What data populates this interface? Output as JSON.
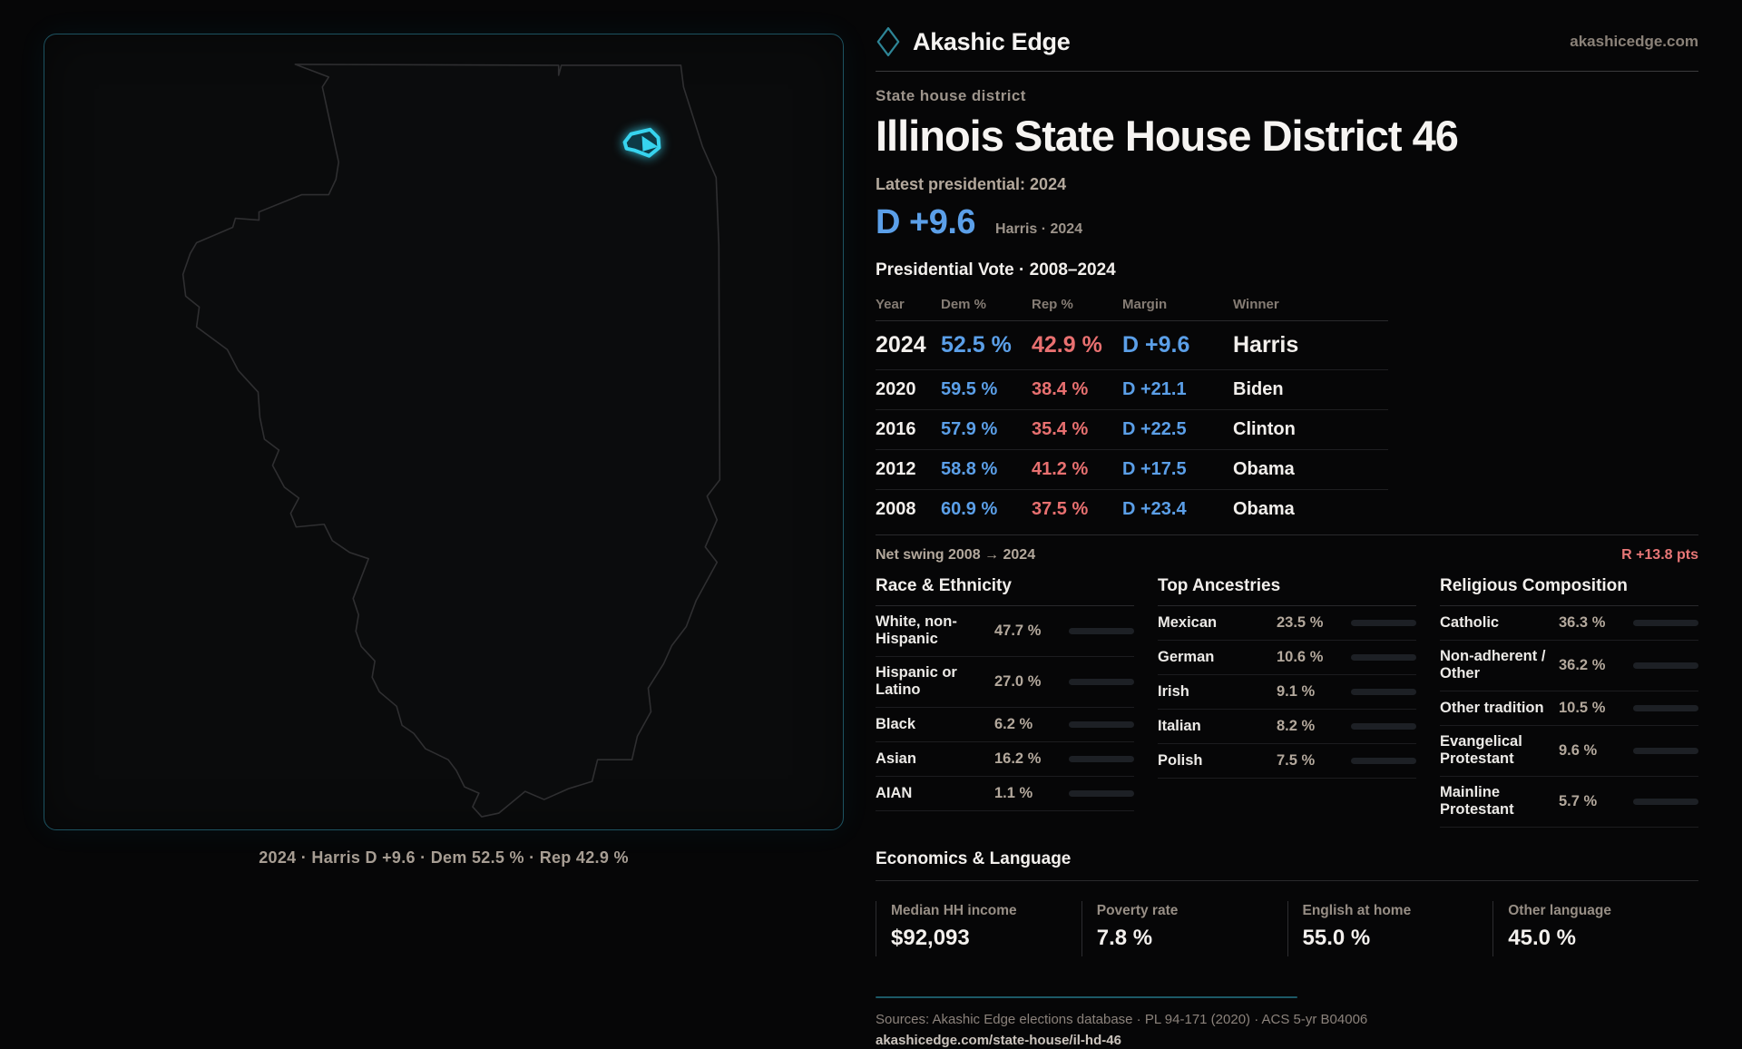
{
  "brand": {
    "name": "Akashic Edge",
    "domain": "akashicedge.com"
  },
  "colors": {
    "dem_blue": "#5b9fe8",
    "rep_red": "#e87070",
    "swing_red": "#e87777",
    "accent_cyan": "#37d3ee",
    "panel_border_teal": "#1d5260"
  },
  "map": {
    "caption": "2024 · Harris D +9.6 · Dem 52.5 % · Rep 42.9 %"
  },
  "header": {
    "eyebrow": "State house district",
    "title": "Illinois State House District 46",
    "latest_label": "Latest presidential: 2024",
    "margin_value": "D +9.6",
    "margin_caption": "Harris · 2024"
  },
  "table": {
    "title": "Presidential Vote · 2008–2024",
    "columns": [
      "Year",
      "Dem %",
      "Rep %",
      "Margin",
      "Winner"
    ],
    "rows": [
      {
        "year": "2024",
        "dem": "52.5 %",
        "rep": "42.9 %",
        "margin": "D +9.6",
        "winner": "Harris"
      },
      {
        "year": "2020",
        "dem": "59.5 %",
        "rep": "38.4 %",
        "margin": "D +21.1",
        "winner": "Biden"
      },
      {
        "year": "2016",
        "dem": "57.9 %",
        "rep": "35.4 %",
        "margin": "D +22.5",
        "winner": "Clinton"
      },
      {
        "year": "2012",
        "dem": "58.8 %",
        "rep": "41.2 %",
        "margin": "D +17.5",
        "winner": "Obama"
      },
      {
        "year": "2008",
        "dem": "60.9 %",
        "rep": "37.5 %",
        "margin": "D +23.4",
        "winner": "Obama"
      }
    ]
  },
  "swing": {
    "label": "Net swing 2008 → 2024",
    "value": "R +13.8 pts"
  },
  "demographics": {
    "race": {
      "title": "Race & Ethnicity",
      "rows": [
        {
          "label": "White, non-Hispanic",
          "value": "47.7 %",
          "pct": 47.7,
          "color": "#8fa0b8"
        },
        {
          "label": "Hispanic or Latino",
          "value": "27.0 %",
          "pct": 27.0,
          "color": "#dda03c"
        },
        {
          "label": "Black",
          "value": "6.2 %",
          "pct": 6.2,
          "color": "#8d79e0"
        },
        {
          "label": "Asian",
          "value": "16.2 %",
          "pct": 16.2,
          "color": "#41c89a"
        },
        {
          "label": "AIAN",
          "value": "1.1 %",
          "pct": 1.1,
          "color": "#c06426"
        }
      ]
    },
    "ancestries": {
      "title": "Top Ancestries",
      "rows": [
        {
          "label": "Mexican",
          "value": "23.5 %",
          "pct": 23.5,
          "color": "#dda03c"
        },
        {
          "label": "German",
          "value": "10.6 %",
          "pct": 10.6,
          "color": "#8fb3d8"
        },
        {
          "label": "Irish",
          "value": "9.1 %",
          "pct": 9.1,
          "color": "#8fb3d8"
        },
        {
          "label": "Italian",
          "value": "8.2 %",
          "pct": 8.2,
          "color": "#8fb3d8"
        },
        {
          "label": "Polish",
          "value": "7.5 %",
          "pct": 7.5,
          "color": "#8fb3d8"
        }
      ]
    },
    "religion": {
      "title": "Religious Composition",
      "rows": [
        {
          "label": "Catholic",
          "value": "36.3 %",
          "pct": 36.3,
          "color": "#e0b93c"
        },
        {
          "label": "Non-adherent / Other",
          "value": "36.2 %",
          "pct": 36.2,
          "color": "#8a94a6"
        },
        {
          "label": "Other tradition",
          "value": "10.5 %",
          "pct": 10.5,
          "color": "#979ea8"
        },
        {
          "label": "Evangelical Protestant",
          "value": "9.6 %",
          "pct": 9.6,
          "color": "#e07a7a"
        },
        {
          "label": "Mainline Protestant",
          "value": "5.7 %",
          "pct": 5.7,
          "color": "#4a8fe0"
        }
      ]
    }
  },
  "economics": {
    "title": "Economics & Language",
    "stats": [
      {
        "label": "Median HH income",
        "value": "$92,093"
      },
      {
        "label": "Poverty rate",
        "value": "7.8 %"
      },
      {
        "label": "English at home",
        "value": "55.0 %"
      },
      {
        "label": "Other language",
        "value": "45.0 %"
      }
    ]
  },
  "footer": {
    "sources": "Sources: Akashic Edge elections database · PL 94-171 (2020) · ACS 5-yr B04006",
    "url": "akashicedge.com/state-house/il-hd-46"
  }
}
